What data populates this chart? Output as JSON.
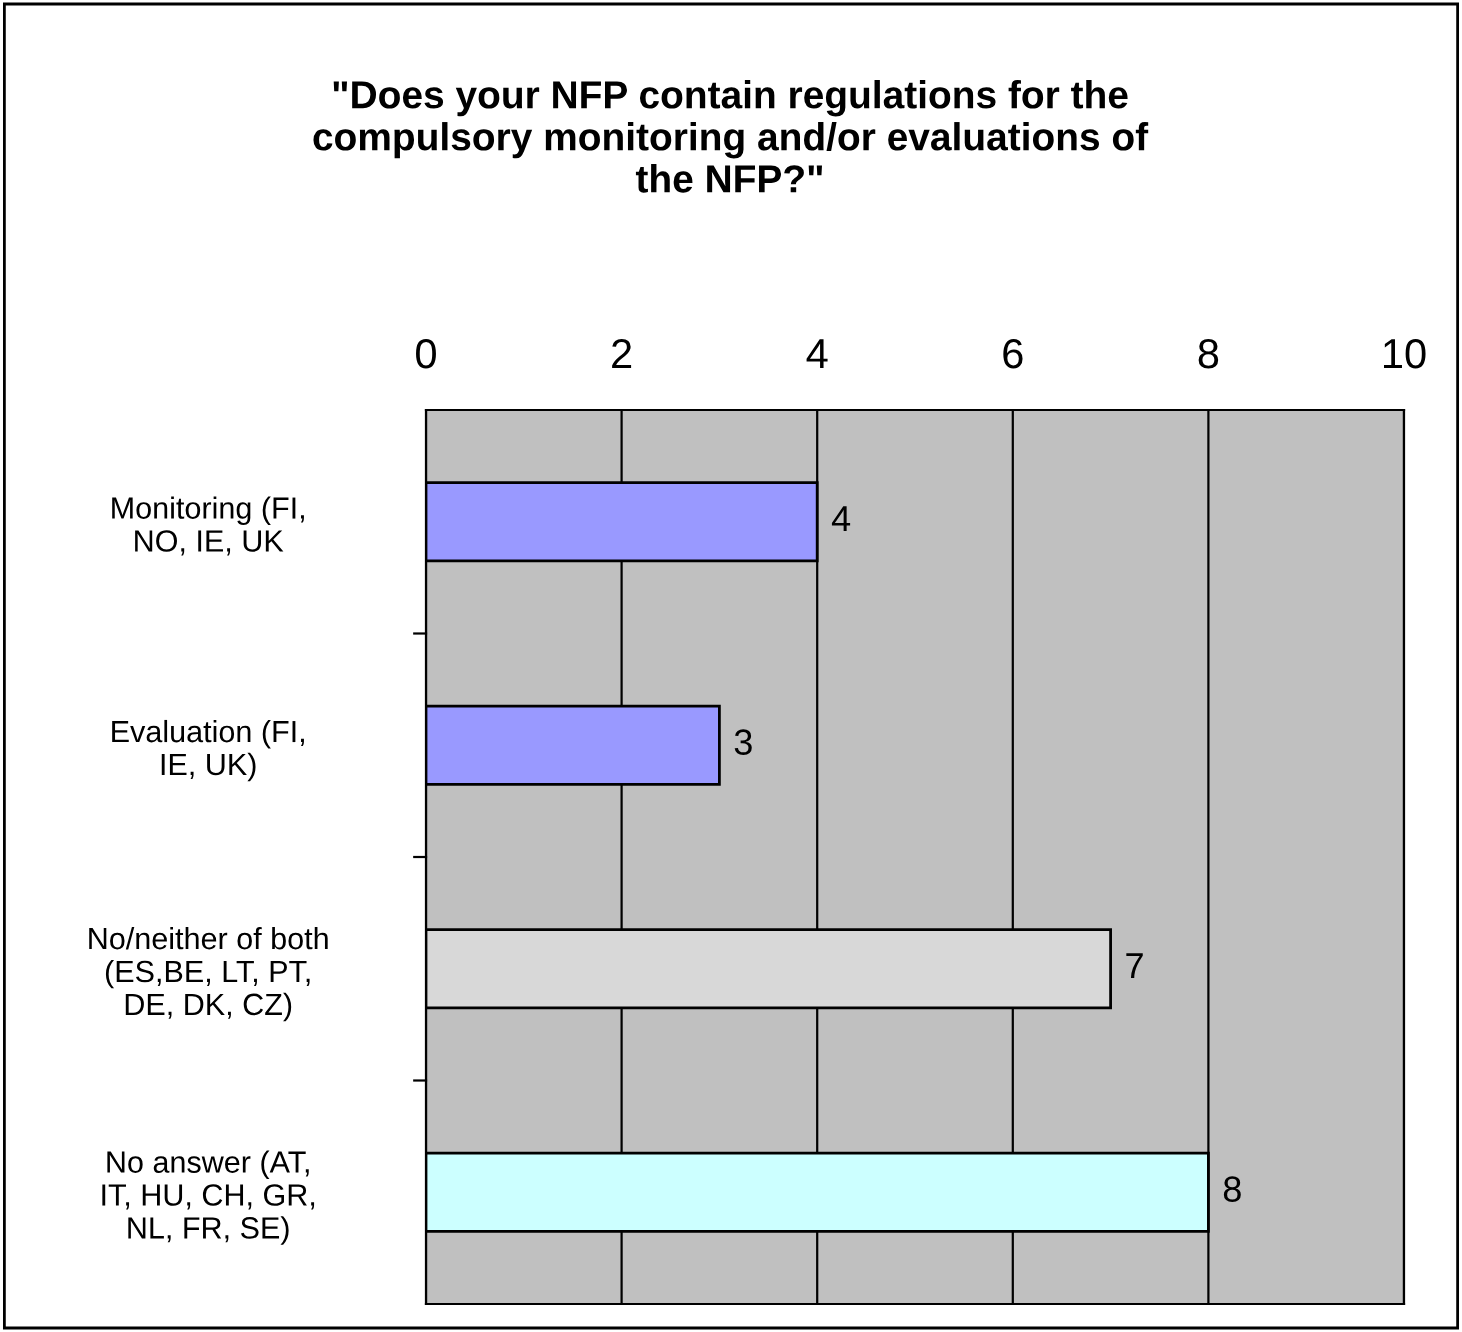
{
  "chart_data": {
    "type": "bar",
    "orientation": "horizontal",
    "title": "\"Does your NFP contain regulations for the\ncompulsory monitoring and/or evaluations of\nthe NFP?\"",
    "categories": [
      "Monitoring (FI,\nNO, IE, UK",
      "Evaluation (FI,\nIE, UK)",
      "No/neither of both\n(ES,BE, LT, PT,\nDE, DK, CZ)",
      "No answer (AT,\nIT, HU, CH, GR,\nNL, FR, SE)"
    ],
    "values": [
      4,
      3,
      7,
      8
    ],
    "colors": [
      "#9999ff",
      "#9999ff",
      "#d8d8d8",
      "#ccffff"
    ],
    "xlim": [
      0,
      10
    ],
    "xticks": [
      0,
      2,
      4,
      6,
      8,
      10
    ],
    "grid": "x",
    "data_labels": true,
    "legend": false
  }
}
